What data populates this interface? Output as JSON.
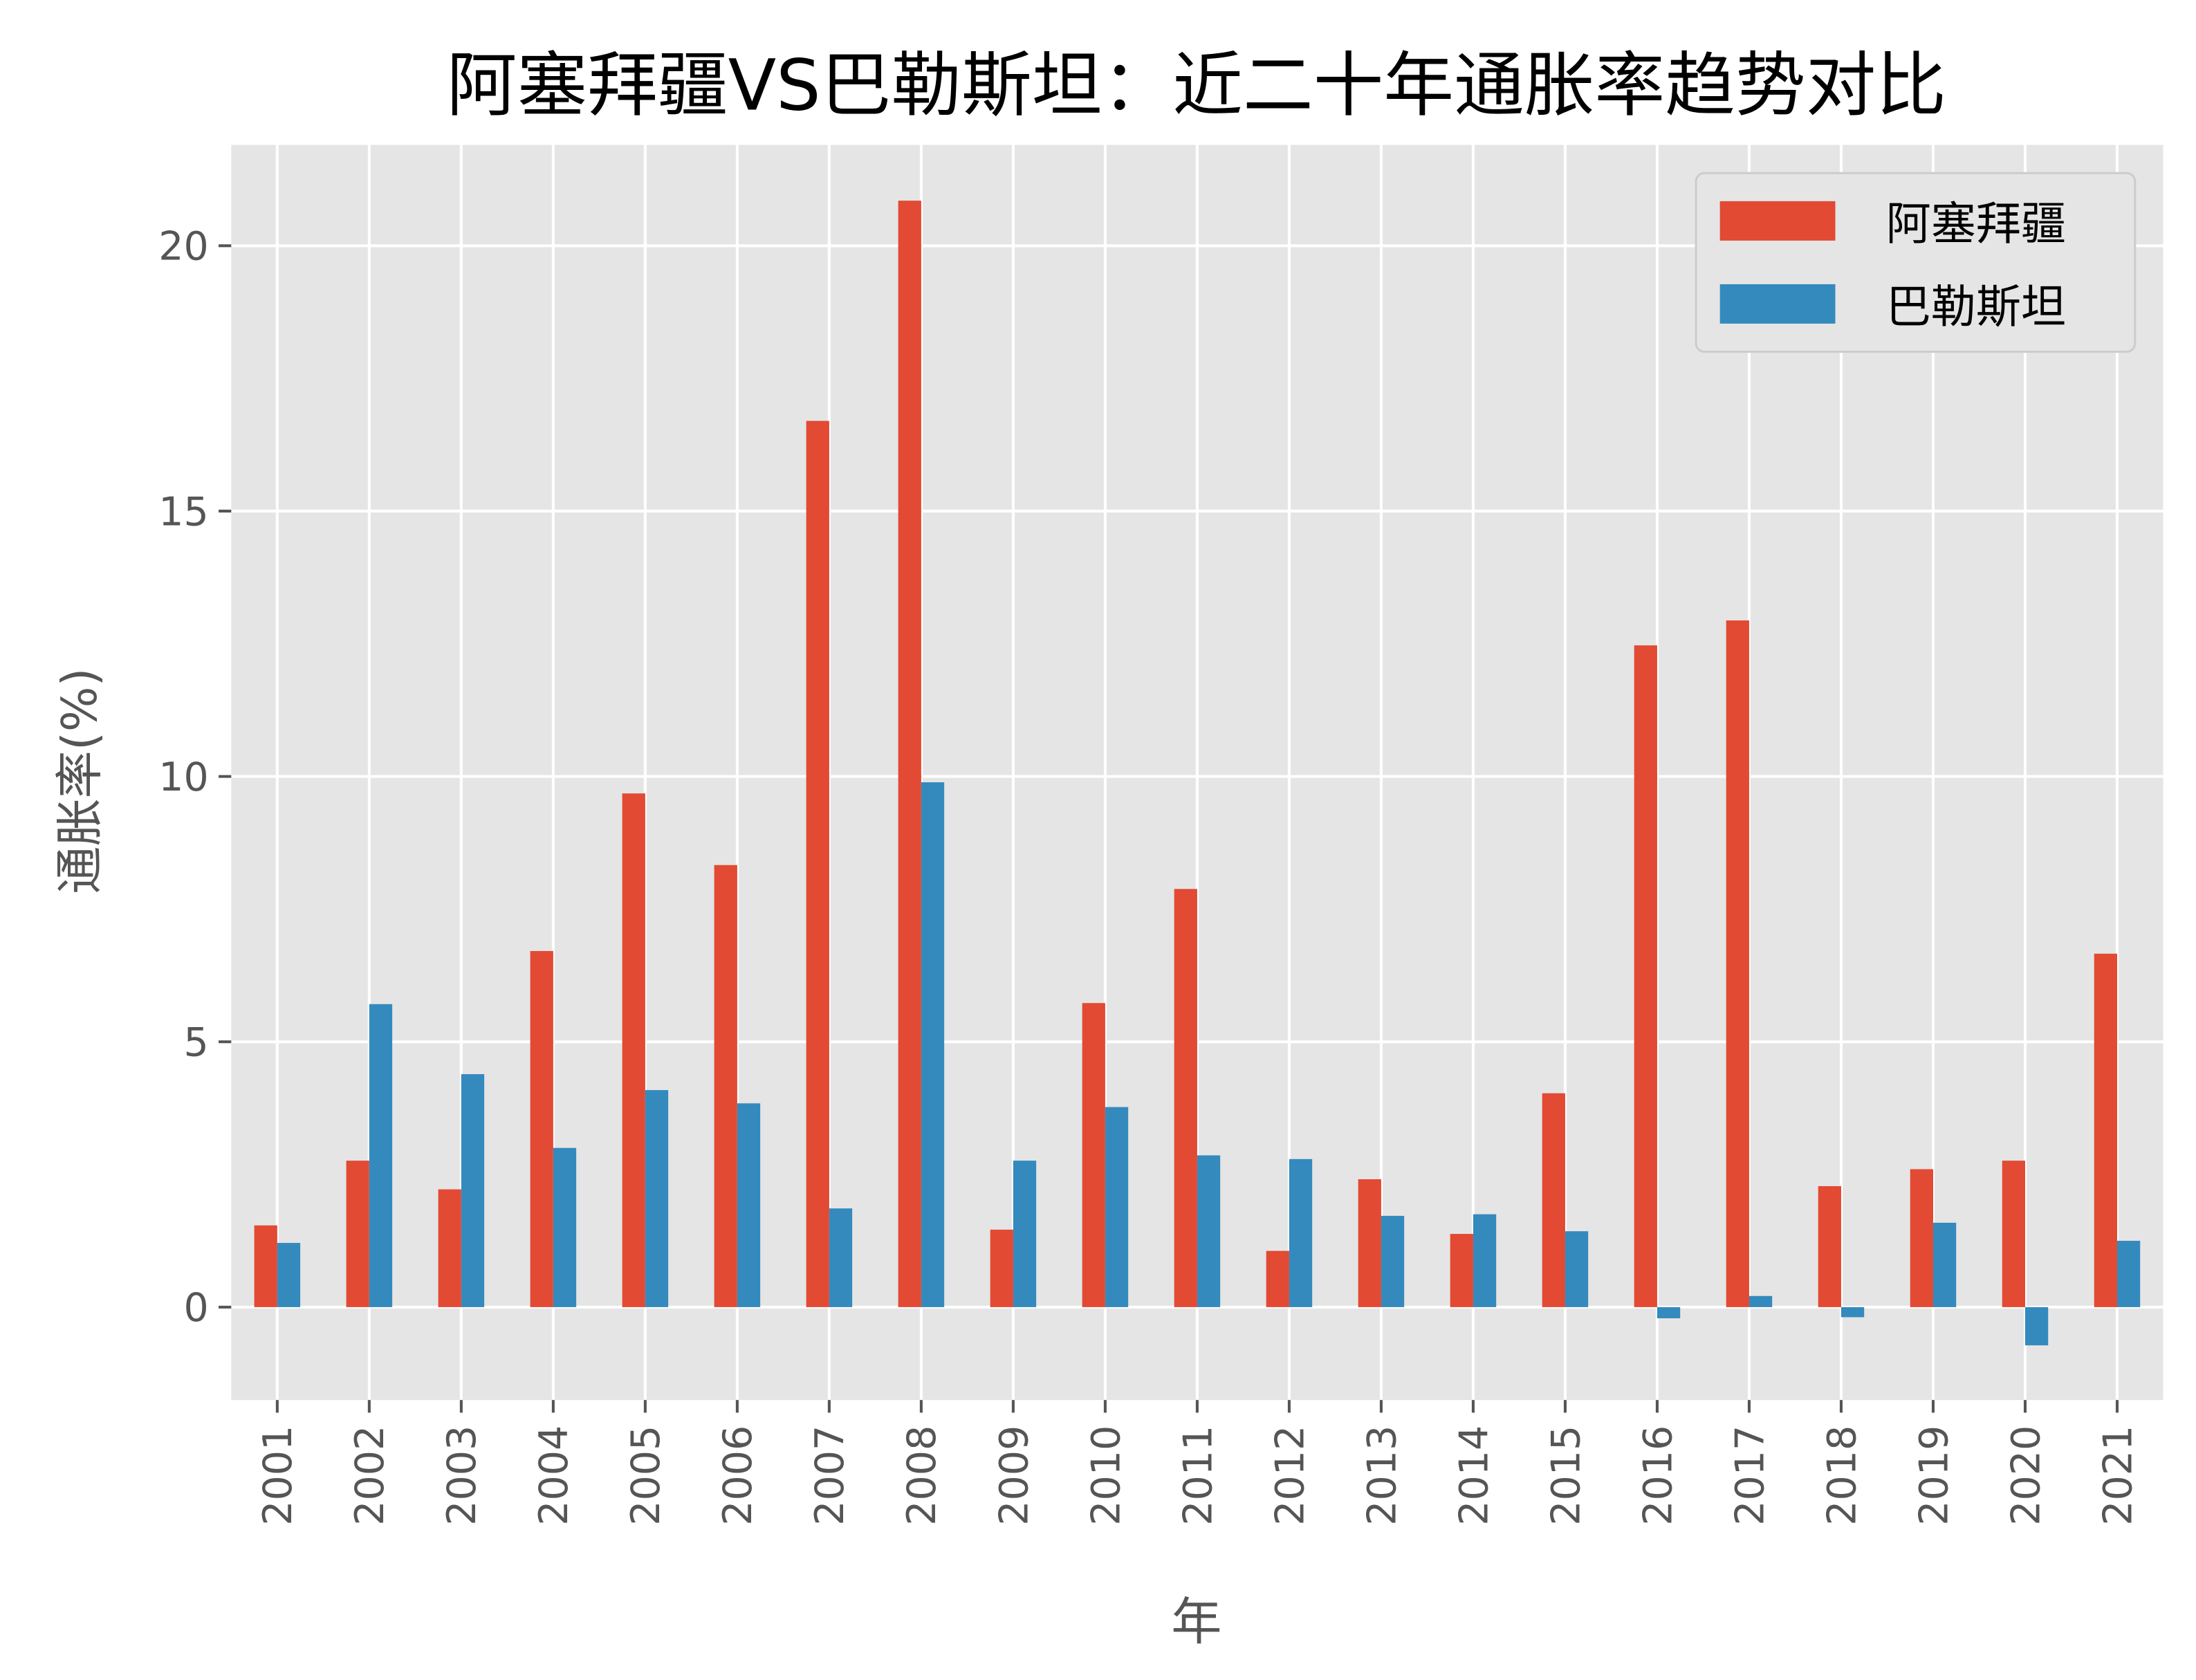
{
  "chart_data": {
    "type": "bar",
    "title": "阿塞拜疆VS巴勒斯坦：近二十年通胀率趋势对比",
    "xlabel": "年",
    "ylabel": "通胀率(%)",
    "categories": [
      "2001",
      "2002",
      "2003",
      "2004",
      "2005",
      "2006",
      "2007",
      "2008",
      "2009",
      "2010",
      "2011",
      "2012",
      "2013",
      "2014",
      "2015",
      "2016",
      "2017",
      "2018",
      "2019",
      "2020",
      "2021"
    ],
    "series": [
      {
        "name": "阿塞拜疆",
        "color": "#E24A33",
        "values": [
          1.54,
          2.76,
          2.22,
          6.71,
          9.68,
          8.33,
          16.7,
          20.85,
          1.46,
          5.73,
          7.88,
          1.06,
          2.41,
          1.38,
          4.03,
          12.47,
          12.94,
          2.28,
          2.6,
          2.76,
          6.66
        ]
      },
      {
        "name": "巴勒斯坦",
        "color": "#348ABD",
        "values": [
          1.21,
          5.71,
          4.39,
          3.0,
          4.09,
          3.84,
          1.86,
          9.89,
          2.76,
          3.77,
          2.86,
          2.79,
          1.72,
          1.75,
          1.43,
          -0.21,
          0.21,
          -0.19,
          1.59,
          -0.72,
          1.25
        ]
      }
    ],
    "yticks": [
      "0",
      "5",
      "10",
      "15",
      "20"
    ],
    "ylim": [
      -1.75,
      21.9
    ],
    "grid": true,
    "legend_position": "top-right",
    "background": "#E5E5E5"
  }
}
